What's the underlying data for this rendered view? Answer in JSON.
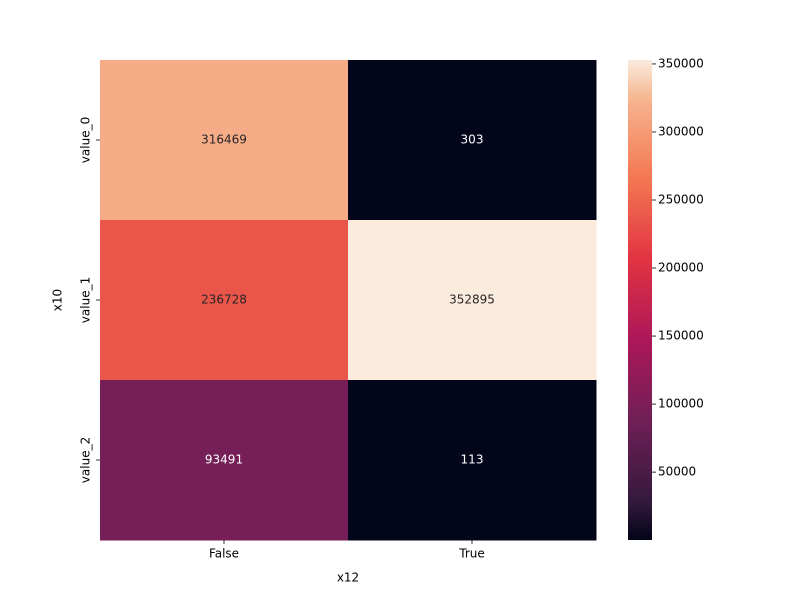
{
  "chart_data": {
    "type": "heatmap",
    "x_label": "x12",
    "y_label": "x10",
    "x_categories": [
      "False",
      "True"
    ],
    "y_categories": [
      "value_0",
      "value_1",
      "value_2"
    ],
    "values": [
      [
        316469,
        303
      ],
      [
        236728,
        352895
      ],
      [
        93491,
        113
      ]
    ],
    "colormap": "rocket",
    "colorbar_lim": [
      113,
      352895
    ],
    "colorbar_ticks": [
      50000,
      100000,
      150000,
      200000,
      250000,
      300000,
      350000
    ]
  }
}
